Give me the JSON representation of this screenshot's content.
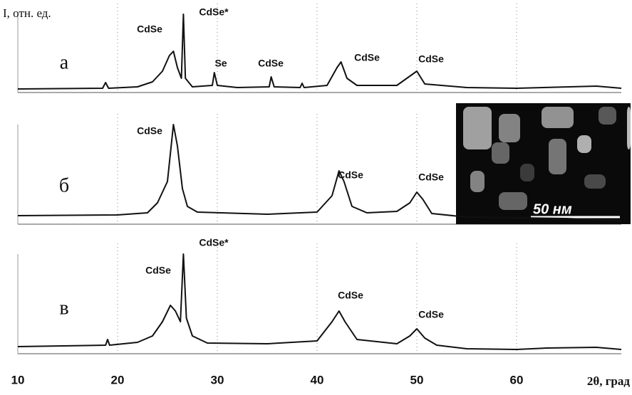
{
  "chart_data": [
    {
      "type": "line",
      "label": "а",
      "ylabel": "I, отн. ед.",
      "color": "#111111",
      "x": [
        10,
        18.5,
        18.8,
        19.1,
        22,
        23.5,
        24.5,
        25.2,
        25.6,
        26,
        26.4,
        26.6,
        26.8,
        27.5,
        29.5,
        29.7,
        30,
        32,
        35.2,
        35.4,
        35.7,
        38.3,
        38.5,
        38.7,
        41,
        42,
        42.4,
        43,
        44,
        48,
        49.5,
        50,
        50.8,
        55,
        60,
        68,
        70.5
      ],
      "values": [
        5,
        6,
        14,
        6,
        8,
        15,
        30,
        52,
        58,
        35,
        20,
        110,
        20,
        8,
        10,
        28,
        10,
        7,
        8,
        22,
        8,
        7,
        13,
        7,
        10,
        35,
        43,
        20,
        10,
        10,
        25,
        30,
        12,
        7,
        6,
        9,
        6
      ],
      "annotations": [
        "CdSe",
        "CdSe*",
        "Se",
        "CdSe",
        "CdSe",
        "CdSe"
      ],
      "xlim": [
        10,
        70.5
      ],
      "ylim": [
        0,
        120
      ],
      "grid": true
    },
    {
      "type": "line",
      "label": "б",
      "color": "#111111",
      "inset_label": "50 нм",
      "x": [
        10,
        20,
        23,
        24,
        25,
        25.6,
        26,
        26.5,
        27,
        28,
        35,
        40,
        41.5,
        42.2,
        42.7,
        43.5,
        45,
        48,
        49.3,
        50,
        50.6,
        51.5,
        55,
        60,
        65,
        70.5
      ],
      "values": [
        12,
        13,
        16,
        30,
        60,
        140,
        110,
        50,
        25,
        17,
        14,
        17,
        40,
        75,
        60,
        25,
        16,
        18,
        30,
        45,
        35,
        15,
        10,
        9,
        8,
        5
      ],
      "annotations": [
        "CdSe",
        "CdSe",
        "CdSe"
      ],
      "xlim": [
        10,
        70.5
      ],
      "ylim": [
        0,
        150
      ],
      "grid": true
    },
    {
      "type": "line",
      "label": "в",
      "color": "#111111",
      "xlabel": "2θ, град",
      "x": [
        10,
        18.8,
        19,
        19.2,
        22,
        23.5,
        24.5,
        25.3,
        25.8,
        26.3,
        26.6,
        26.9,
        27.5,
        29,
        35,
        40,
        41.5,
        42.2,
        42.8,
        44,
        48,
        49.3,
        50,
        50.8,
        52,
        55,
        60,
        63,
        68,
        70.5
      ],
      "values": [
        10,
        12,
        20,
        12,
        16,
        25,
        45,
        68,
        60,
        45,
        140,
        50,
        25,
        15,
        14,
        18,
        45,
        60,
        45,
        20,
        14,
        25,
        35,
        22,
        12,
        7,
        6,
        8,
        9,
        6
      ],
      "annotations": [
        "CdSe*",
        "CdSe",
        "CdSe",
        "CdSe"
      ],
      "xlim": [
        10,
        70.5
      ],
      "ylim": [
        0,
        150
      ],
      "xticks": [
        10,
        20,
        30,
        40,
        50,
        60
      ],
      "grid": true
    }
  ]
}
